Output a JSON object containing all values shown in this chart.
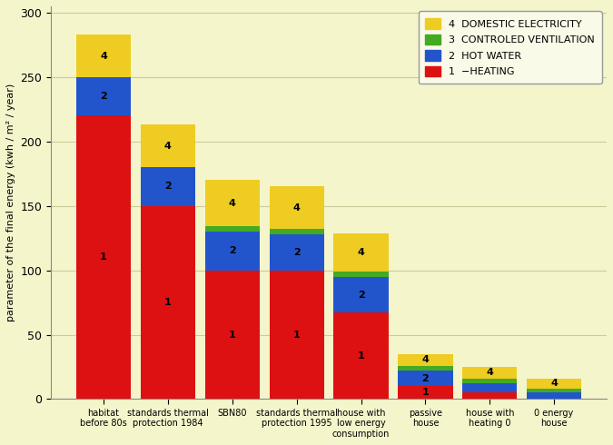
{
  "categories": [
    "habitat\nbefore 80s",
    "standards thermal\nprotection 1984",
    "SBN80",
    "standards thermal\nprotection 1995",
    "house with\nlow energy\nconsumption",
    "passive\nhouse",
    "house with\nheating 0",
    "0 energy\nhouse"
  ],
  "heating": [
    220,
    150,
    100,
    100,
    67,
    10,
    5,
    0
  ],
  "hot_water": [
    30,
    30,
    30,
    28,
    28,
    12,
    7,
    5
  ],
  "ventilation": [
    0,
    0,
    4,
    4,
    4,
    4,
    4,
    3
  ],
  "electricity": [
    33,
    33,
    36,
    33,
    30,
    9,
    9,
    8
  ],
  "colors": {
    "heating": "#dd1111",
    "hot_water": "#2255cc",
    "ventilation": "#44aa22",
    "electricity": "#eecc22"
  },
  "ylabel": "parameter of the final energy (kwh / m² / year)",
  "ylim": [
    0,
    305
  ],
  "yticks": [
    0,
    50,
    100,
    150,
    200,
    250,
    300
  ],
  "background_color": "#f5f5cc",
  "plot_background": "#f5f5cc",
  "grid_color": "#cccc99",
  "bar_label_fontsize": 8,
  "bar_width": 0.85,
  "figwidth": 6.75,
  "figheight": 4.9
}
